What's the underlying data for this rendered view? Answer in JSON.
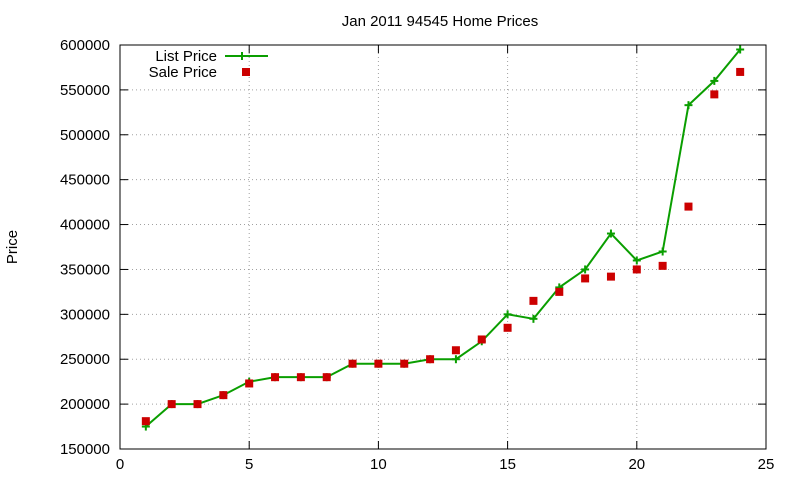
{
  "chart_data": {
    "type": "line",
    "title": "Jan 2011 94545 Home Prices",
    "xlabel": "",
    "ylabel": "Price",
    "xlim": [
      0,
      25
    ],
    "ylim": [
      150000,
      600000
    ],
    "xticks": [
      "0",
      "5",
      "10",
      "15",
      "20",
      "25"
    ],
    "yticks": [
      "150000",
      "200000",
      "250000",
      "300000",
      "350000",
      "400000",
      "450000",
      "500000",
      "550000",
      "600000"
    ],
    "grid": true,
    "legend_position": "top-left",
    "series": [
      {
        "name": "List Price",
        "style": "line+cross",
        "color": "#0a9e00",
        "x": [
          1,
          2,
          3,
          4,
          5,
          6,
          7,
          8,
          9,
          10,
          11,
          12,
          13,
          14,
          15,
          16,
          17,
          18,
          19,
          20,
          21,
          22,
          23,
          24
        ],
        "values": [
          175000,
          200000,
          200000,
          210000,
          225000,
          230000,
          230000,
          230000,
          245000,
          245000,
          245000,
          250000,
          250000,
          270000,
          300000,
          295000,
          330000,
          350000,
          390000,
          360000,
          370000,
          533000,
          560000,
          595000
        ]
      },
      {
        "name": "Sale Price",
        "style": "square-points",
        "color": "#cc0000",
        "x": [
          1,
          2,
          3,
          4,
          5,
          6,
          7,
          8,
          9,
          10,
          11,
          12,
          13,
          14,
          15,
          16,
          17,
          18,
          19,
          20,
          21,
          22,
          23,
          24
        ],
        "values": [
          181000,
          200000,
          200000,
          210000,
          223000,
          230000,
          230000,
          230000,
          245000,
          245000,
          245000,
          250000,
          260000,
          272000,
          285000,
          315000,
          325000,
          340000,
          342000,
          350000,
          354000,
          420000,
          545000,
          570000
        ]
      }
    ]
  }
}
